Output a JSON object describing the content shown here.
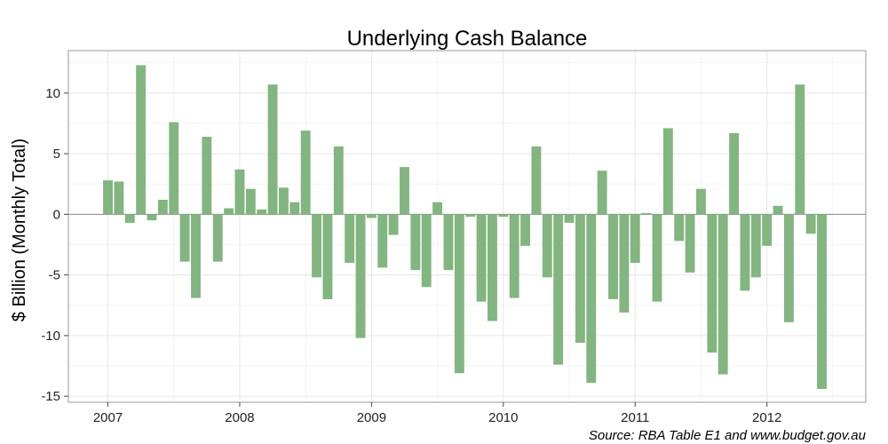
{
  "chart_data": {
    "type": "bar",
    "title": "Underlying Cash Balance",
    "ylabel": "$ Billion (Monthly Total)",
    "xlabel": "",
    "source": "Source: RBA Table E1 and www.budget.gov.au",
    "ylim": [
      -15.5,
      13.5
    ],
    "y_ticks": [
      -15,
      -10,
      -5,
      0,
      5,
      10
    ],
    "y_tick_labels": [
      "-15",
      "-10",
      "-5",
      "0",
      "5",
      "10"
    ],
    "x_ticks": [
      2007,
      2008,
      2009,
      2010,
      2011,
      2012
    ],
    "x_tick_labels": [
      "2007",
      "2008",
      "2009",
      "2010",
      "2011",
      "2012"
    ],
    "xlim": [
      2006.7,
      2012.75
    ],
    "start_year": 2007,
    "start_month": 1,
    "grid": true,
    "bar_color": "#82b57f",
    "values": [
      2.8,
      2.7,
      -0.7,
      12.3,
      -0.5,
      1.2,
      7.6,
      -3.9,
      -6.9,
      6.4,
      -3.9,
      0.5,
      3.7,
      2.1,
      0.4,
      10.7,
      2.2,
      1.0,
      6.9,
      -5.2,
      -7.0,
      5.6,
      -4.0,
      -10.2,
      -0.3,
      -4.4,
      -1.7,
      3.9,
      -4.6,
      -6.0,
      1.0,
      -4.6,
      -13.1,
      -0.2,
      -7.2,
      -8.8,
      -0.2,
      -6.9,
      -2.6,
      5.6,
      -5.2,
      -12.4,
      -0.7,
      -10.6,
      -13.9,
      3.6,
      -7.0,
      -8.1,
      -4.0,
      0.1,
      -7.2,
      7.1,
      -2.2,
      -4.8,
      2.1,
      -11.4,
      -13.2,
      6.7,
      -6.3,
      -5.2,
      -2.6,
      0.7,
      -8.9,
      10.7,
      -1.6,
      -14.4
    ]
  }
}
